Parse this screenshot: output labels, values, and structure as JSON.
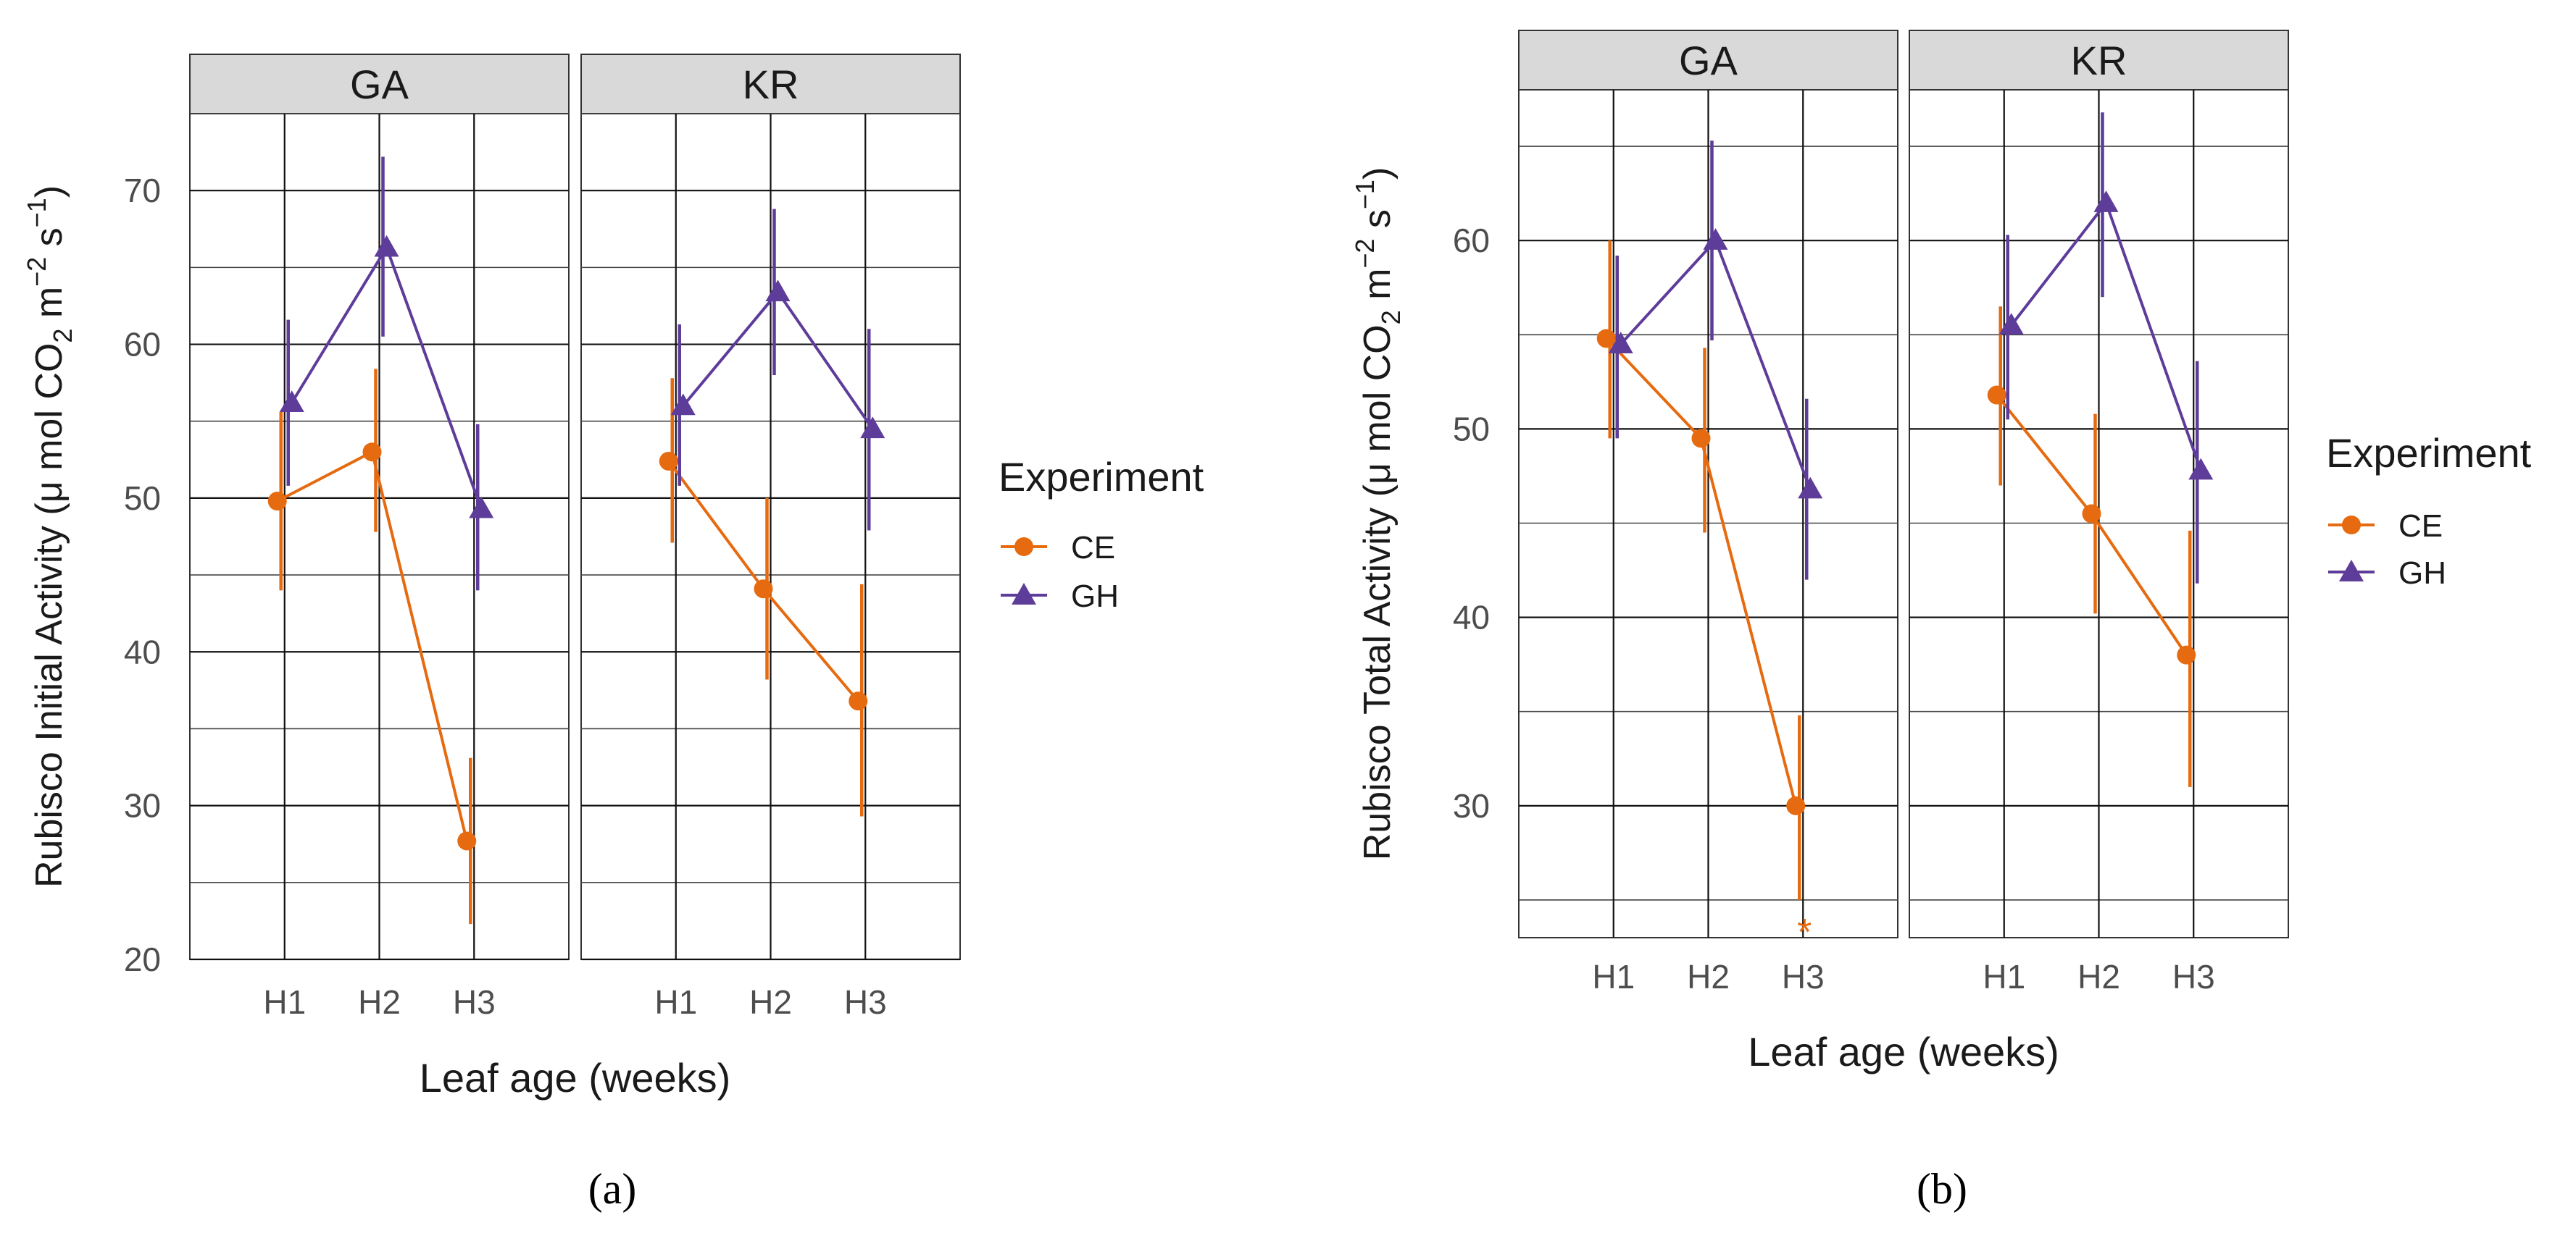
{
  "figure": {
    "panel_labels": [
      "(a)",
      "(b)"
    ],
    "legend_title": "Experiment"
  },
  "chart_data": [
    {
      "type": "line",
      "panel_label": "(a)",
      "facets": [
        "GA",
        "KR"
      ],
      "categories": [
        "H1",
        "H2",
        "H3"
      ],
      "xlabel": "Leaf age (weeks)",
      "ylabel": {
        "prefix": "Rubisco Initial Activity (",
        "mu": "μ",
        "mid": " mol CO",
        "sub": "2",
        "m": " m",
        "sup1": "−2",
        "s": " s",
        "sup2": "−1",
        "close": ")"
      },
      "ylim": [
        20,
        75
      ],
      "yticks": [
        20,
        30,
        40,
        50,
        60,
        70
      ],
      "grid": true,
      "legend_title": "Experiment",
      "legend_position": "right",
      "colors": {
        "CE": "#e66a0f",
        "GH": "#5e3c99"
      },
      "series": [
        {
          "name": "CE",
          "marker": "circle",
          "facets": {
            "GA": {
              "values": [
                49.8,
                53.0,
                27.7
              ],
              "lower": [
                44.0,
                47.8,
                22.3
              ],
              "upper": [
                55.6,
                58.4,
                33.1
              ]
            },
            "KR": {
              "values": [
                52.4,
                44.1,
                36.8
              ],
              "lower": [
                47.1,
                38.2,
                29.3
              ],
              "upper": [
                57.8,
                50.0,
                44.4
              ]
            }
          }
        },
        {
          "name": "GH",
          "marker": "triangle",
          "facets": {
            "GA": {
              "values": [
                56.2,
                66.3,
                49.3
              ],
              "lower": [
                50.8,
                60.5,
                44.0
              ],
              "upper": [
                61.6,
                72.2,
                54.8
              ]
            },
            "KR": {
              "values": [
                56.0,
                63.4,
                54.5
              ],
              "lower": [
                50.8,
                58.0,
                47.9
              ],
              "upper": [
                61.3,
                68.8,
                61.0
              ]
            }
          }
        }
      ],
      "annotations": []
    },
    {
      "type": "line",
      "panel_label": "(b)",
      "facets": [
        "GA",
        "KR"
      ],
      "categories": [
        "H1",
        "H2",
        "H3"
      ],
      "xlabel": "Leaf age (weeks)",
      "ylabel": {
        "prefix": "Rubisco Total Activity (",
        "mu": "μ",
        "mid": " mol CO",
        "sub": "2",
        "m": " m",
        "sup1": "−2",
        "s": " s",
        "sup2": "−1",
        "close": ")"
      },
      "ylim": [
        23,
        68
      ],
      "yticks": [
        30,
        40,
        50,
        60
      ],
      "grid": true,
      "legend_title": "Experiment",
      "legend_position": "right",
      "colors": {
        "CE": "#e66a0f",
        "GH": "#5e3c99"
      },
      "series": [
        {
          "name": "CE",
          "marker": "circle",
          "facets": {
            "GA": {
              "values": [
                54.8,
                49.5,
                30.0
              ],
              "lower": [
                49.5,
                44.5,
                25.0
              ],
              "upper": [
                60.0,
                54.3,
                34.8
              ]
            },
            "KR": {
              "values": [
                51.8,
                45.5,
                38.0
              ],
              "lower": [
                47.0,
                40.2,
                31.0
              ],
              "upper": [
                56.5,
                50.8,
                44.6
              ]
            }
          }
        },
        {
          "name": "GH",
          "marker": "triangle",
          "facets": {
            "GA": {
              "values": [
                54.5,
                60.0,
                46.8
              ],
              "lower": [
                49.5,
                54.7,
                42.0
              ],
              "upper": [
                59.2,
                65.3,
                51.6
              ]
            },
            "KR": {
              "values": [
                55.5,
                62.0,
                47.8
              ],
              "lower": [
                50.5,
                57.0,
                41.8
              ],
              "upper": [
                60.3,
                66.8,
                53.6
              ]
            }
          }
        }
      ],
      "annotations": [
        {
          "facet": "GA",
          "category": "H3",
          "text": "*",
          "series": "CE"
        }
      ]
    }
  ]
}
